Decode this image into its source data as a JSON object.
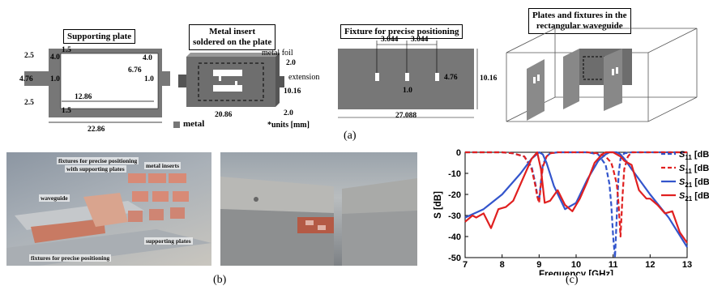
{
  "top_panel": {
    "supporting_plate": {
      "title": "Supporting plate",
      "dims": {
        "d2_5a": "2.5",
        "d1_5a": "1.5",
        "d4_0a": "4.0",
        "d6_76": "6.76",
        "d4_0b": "4.0",
        "d4_76": "4.76",
        "d1_0a": "1.0",
        "d1_0b": "1.0",
        "d12_86": "12.86",
        "d2_5b": "2.5",
        "d1_5b": "1.5",
        "d22_86": "22.86"
      }
    },
    "metal_insert": {
      "title_line1": "Metal insert",
      "title_line2": "soldered on the plate",
      "metal_foil": "metal foil",
      "d2_0a": "2.0",
      "extension": "extension",
      "d10_16": "10.16",
      "d20_86": "20.86",
      "d2_0b": "2.0",
      "legend_metal": "metal",
      "units": "*units [mm]"
    },
    "fixture": {
      "title": "Fixture for precise positioning",
      "d3_044a": "3.044",
      "d3_044b": "3.044",
      "d4_76": "4.76",
      "d1_0": "1.0",
      "d10_16": "10.16",
      "d27_088": "27.088"
    },
    "waveguide": {
      "title_line1": "Plates and fixtures in the",
      "title_line2": "rectangular waveguide"
    },
    "label": "(a)"
  },
  "photos": {
    "photo1": {
      "notes": {
        "fixtures_plates_1": "fixtures for precise positioning",
        "fixtures_plates_2": "with supporting plates",
        "metal_inserts": "metal inserts",
        "waveguide": "waveguide",
        "supporting_plates": "supporting plates",
        "fixtures": "fixtures for precise positioning"
      }
    },
    "label": "(b)"
  },
  "plot_label": "(c)",
  "chart_data": {
    "type": "line",
    "xlabel": "Frequency [GHz]",
    "ylabel": "S [dB]",
    "xlim": [
      7,
      13
    ],
    "ylim": [
      -50,
      0
    ],
    "xticks": [
      7,
      8,
      9,
      10,
      11,
      12,
      13
    ],
    "yticks": [
      0,
      -10,
      -20,
      -30,
      -40,
      -50
    ],
    "grid": false,
    "legend_position": "right",
    "series": [
      {
        "name": "S11 [dB]",
        "name_main": "S",
        "name_sub": "11",
        "name_suffix": "[dB]",
        "color": "#3355cc",
        "dash": "dashed",
        "x": [
          7.0,
          7.5,
          8.0,
          8.3,
          8.6,
          8.8,
          8.9,
          8.95,
          9.0,
          9.05,
          9.1,
          9.2,
          9.3,
          9.5,
          9.7,
          10.0,
          10.3,
          10.6,
          10.8,
          10.9,
          10.95,
          11.0,
          11.05,
          11.1,
          11.15,
          11.2,
          11.3,
          11.5,
          12.0,
          13.0
        ],
        "y": [
          0,
          0,
          0,
          -0.5,
          -2,
          -7,
          -15,
          -20,
          -23,
          -14,
          -6,
          -2,
          -0.5,
          0,
          0,
          0,
          0,
          -1,
          -6,
          -15,
          -25,
          -40,
          -50,
          -30,
          -10,
          -3,
          -0.5,
          0,
          0,
          0
        ]
      },
      {
        "name": "S11 [dB]",
        "name_main": "S",
        "name_sub": "11",
        "name_suffix": "[dB]",
        "color": "#e02020",
        "dash": "dashed",
        "x": [
          7.0,
          7.5,
          8.0,
          8.3,
          8.6,
          8.8,
          8.9,
          8.95,
          9.0,
          9.05,
          9.1,
          9.2,
          9.3,
          9.5,
          9.7,
          10.0,
          10.3,
          10.6,
          10.8,
          10.95,
          11.0,
          11.1,
          11.15,
          11.2,
          11.25,
          11.3,
          11.4,
          11.5,
          12.0,
          13.0
        ],
        "y": [
          0,
          0,
          0,
          -0.5,
          -2,
          -8,
          -16,
          -21,
          -24,
          -15,
          -7,
          -2,
          -0.5,
          0,
          0,
          0,
          0,
          -0.5,
          -2,
          -5,
          -8,
          -15,
          -25,
          -40,
          -22,
          -8,
          -2,
          0,
          0,
          0
        ]
      },
      {
        "name": "S21 [dB]",
        "name_main": "S",
        "name_sub": "21",
        "name_suffix": "[dB]",
        "color": "#3355cc",
        "dash": "solid",
        "x": [
          7.0,
          7.5,
          8.0,
          8.5,
          8.8,
          9.0,
          9.1,
          9.2,
          9.4,
          9.7,
          10.0,
          10.3,
          10.6,
          10.8,
          10.9,
          11.0,
          11.1,
          11.2,
          11.3,
          11.5,
          12.0,
          12.5,
          13.0
        ],
        "y": [
          -31,
          -27,
          -20,
          -10,
          -3,
          0,
          -1,
          -5,
          -16,
          -27,
          -24,
          -13,
          -4,
          -1,
          0,
          0,
          0,
          -1,
          -3,
          -8,
          -20,
          -31,
          -45
        ]
      },
      {
        "name": "S21 [dB]",
        "name_main": "S",
        "name_sub": "21",
        "name_suffix": "[dB]",
        "color": "#e02020",
        "dash": "solid",
        "x": [
          7.0,
          7.2,
          7.3,
          7.5,
          7.7,
          7.9,
          8.1,
          8.3,
          8.5,
          8.8,
          8.95,
          9.05,
          9.15,
          9.3,
          9.5,
          9.7,
          9.9,
          10.1,
          10.3,
          10.5,
          10.7,
          10.8,
          10.9,
          11.0,
          11.1,
          11.2,
          11.3,
          11.5,
          11.7,
          11.9,
          12.0,
          12.2,
          12.4,
          12.6,
          12.8,
          13.0
        ],
        "y": [
          -33,
          -30,
          -31,
          -29,
          -36,
          -27,
          -26,
          -23,
          -15,
          -3,
          0,
          -8,
          -24,
          -23,
          -18,
          -25,
          -28,
          -22,
          -14,
          -5,
          -1,
          0,
          0,
          0,
          -1,
          -2,
          -4,
          -6,
          -18,
          -22,
          -22,
          -25,
          -29,
          -28,
          -38,
          -43
        ]
      }
    ]
  }
}
